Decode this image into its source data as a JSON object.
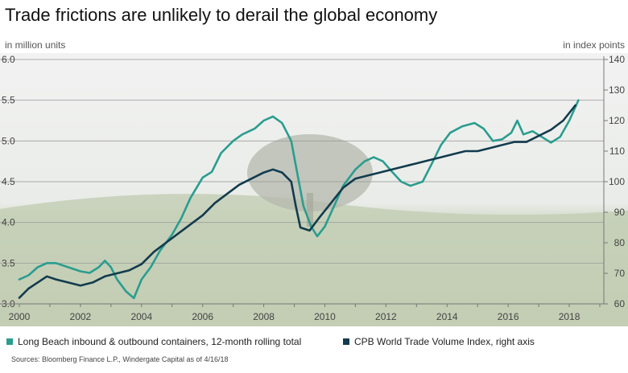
{
  "title": "Trade frictions are unlikely to derail the global economy",
  "source": "Sources: Bloomberg Finance L.P., Windergate Capital as of 4/16/18",
  "colors": {
    "teal": "#2a9d8f",
    "navy": "#123b4d",
    "grid": "#9a9a9a",
    "axis": "#777777"
  },
  "chart_data": {
    "type": "line",
    "left_axis": {
      "unit": "in million units",
      "ylim": [
        3.0,
        6.0
      ],
      "ticks": [
        "3.0",
        "3.5",
        "4.0",
        "4.5",
        "5.0",
        "5.5",
        "6.0"
      ]
    },
    "right_axis": {
      "unit": "in index points",
      "ylim": [
        60,
        140
      ],
      "ticks": [
        "60",
        "70",
        "80",
        "90",
        "100",
        "110",
        "120",
        "130",
        "140"
      ]
    },
    "x_axis": {
      "xlim": [
        2000,
        2019
      ],
      "ticks": [
        "2000",
        "2002",
        "2004",
        "2006",
        "2008",
        "2010",
        "2012",
        "2014",
        "2016",
        "2018"
      ]
    },
    "grid": true,
    "series": [
      {
        "name": "Long Beach inbound & outbound containers, 12-month rolling total",
        "axis": "left",
        "color_key": "teal",
        "points": [
          [
            2000.0,
            3.3
          ],
          [
            2000.3,
            3.35
          ],
          [
            2000.6,
            3.45
          ],
          [
            2000.9,
            3.5
          ],
          [
            2001.2,
            3.5
          ],
          [
            2001.6,
            3.45
          ],
          [
            2002.0,
            3.4
          ],
          [
            2002.3,
            3.38
          ],
          [
            2002.6,
            3.45
          ],
          [
            2002.8,
            3.53
          ],
          [
            2003.0,
            3.45
          ],
          [
            2003.2,
            3.3
          ],
          [
            2003.5,
            3.15
          ],
          [
            2003.75,
            3.07
          ],
          [
            2004.0,
            3.3
          ],
          [
            2004.3,
            3.45
          ],
          [
            2004.6,
            3.65
          ],
          [
            2005.0,
            3.85
          ],
          [
            2005.3,
            4.05
          ],
          [
            2005.6,
            4.3
          ],
          [
            2006.0,
            4.55
          ],
          [
            2006.3,
            4.62
          ],
          [
            2006.6,
            4.85
          ],
          [
            2007.0,
            5.0
          ],
          [
            2007.3,
            5.08
          ],
          [
            2007.7,
            5.15
          ],
          [
            2008.0,
            5.25
          ],
          [
            2008.3,
            5.3
          ],
          [
            2008.6,
            5.22
          ],
          [
            2008.9,
            5.0
          ],
          [
            2009.1,
            4.6
          ],
          [
            2009.3,
            4.2
          ],
          [
            2009.55,
            3.95
          ],
          [
            2009.75,
            3.83
          ],
          [
            2010.0,
            3.95
          ],
          [
            2010.3,
            4.2
          ],
          [
            2010.6,
            4.45
          ],
          [
            2011.0,
            4.65
          ],
          [
            2011.3,
            4.75
          ],
          [
            2011.6,
            4.8
          ],
          [
            2011.9,
            4.75
          ],
          [
            2012.2,
            4.62
          ],
          [
            2012.5,
            4.5
          ],
          [
            2012.8,
            4.45
          ],
          [
            2013.2,
            4.5
          ],
          [
            2013.5,
            4.72
          ],
          [
            2013.8,
            4.95
          ],
          [
            2014.1,
            5.1
          ],
          [
            2014.5,
            5.18
          ],
          [
            2014.9,
            5.22
          ],
          [
            2015.2,
            5.15
          ],
          [
            2015.5,
            5.0
          ],
          [
            2015.8,
            5.02
          ],
          [
            2016.1,
            5.1
          ],
          [
            2016.3,
            5.25
          ],
          [
            2016.5,
            5.08
          ],
          [
            2016.8,
            5.12
          ],
          [
            2017.1,
            5.05
          ],
          [
            2017.4,
            4.98
          ],
          [
            2017.7,
            5.05
          ],
          [
            2018.0,
            5.25
          ],
          [
            2018.3,
            5.5
          ]
        ]
      },
      {
        "name": "CPB World Trade Volume Index, right axis",
        "axis": "right",
        "color_key": "navy",
        "points": [
          [
            2000.0,
            62
          ],
          [
            2000.3,
            65
          ],
          [
            2000.6,
            67
          ],
          [
            2000.9,
            69
          ],
          [
            2001.2,
            68
          ],
          [
            2001.6,
            67
          ],
          [
            2002.0,
            66
          ],
          [
            2002.4,
            67
          ],
          [
            2002.8,
            69
          ],
          [
            2003.2,
            70
          ],
          [
            2003.6,
            71
          ],
          [
            2004.0,
            73
          ],
          [
            2004.4,
            77
          ],
          [
            2004.8,
            80
          ],
          [
            2005.2,
            83
          ],
          [
            2005.6,
            86
          ],
          [
            2006.0,
            89
          ],
          [
            2006.4,
            93
          ],
          [
            2006.8,
            96
          ],
          [
            2007.2,
            99
          ],
          [
            2007.6,
            101
          ],
          [
            2008.0,
            103
          ],
          [
            2008.3,
            104
          ],
          [
            2008.6,
            103
          ],
          [
            2008.9,
            100
          ],
          [
            2009.05,
            92
          ],
          [
            2009.2,
            85
          ],
          [
            2009.5,
            84
          ],
          [
            2009.8,
            88
          ],
          [
            2010.2,
            93
          ],
          [
            2010.6,
            98
          ],
          [
            2011.0,
            101
          ],
          [
            2011.4,
            102
          ],
          [
            2011.8,
            103
          ],
          [
            2012.2,
            104
          ],
          [
            2012.6,
            105
          ],
          [
            2013.0,
            106
          ],
          [
            2013.4,
            107
          ],
          [
            2013.8,
            108
          ],
          [
            2014.2,
            109
          ],
          [
            2014.6,
            110
          ],
          [
            2015.0,
            110
          ],
          [
            2015.4,
            111
          ],
          [
            2015.8,
            112
          ],
          [
            2016.2,
            113
          ],
          [
            2016.6,
            113
          ],
          [
            2017.0,
            115
          ],
          [
            2017.4,
            117
          ],
          [
            2017.8,
            120
          ],
          [
            2018.2,
            125
          ]
        ]
      }
    ]
  }
}
